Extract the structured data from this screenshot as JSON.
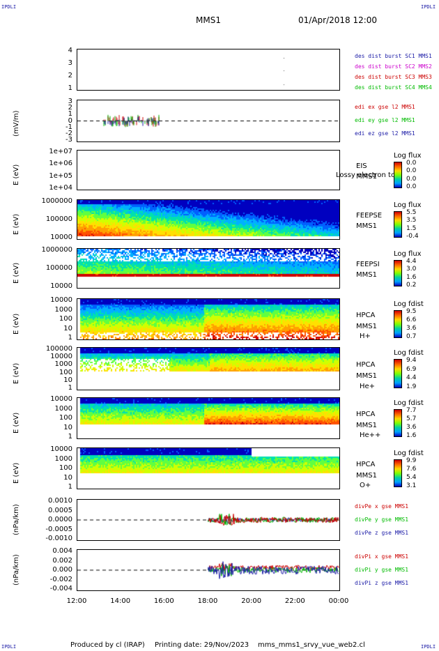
{
  "header": {
    "corner": "IPDLI",
    "spacecraft": "MMS1",
    "datetime": "01/Apr/2018 12:00"
  },
  "footer": {
    "producer": "Produced by cl (IRAP)",
    "print_date": "Printing date: 29/Nov/2023",
    "filename": "mms_mms1_srvy_vue_web2.cl"
  },
  "colors": {
    "blue": "#1a1aa6",
    "magenta": "#cc00cc",
    "red": "#cc0000",
    "green": "#00bb00"
  },
  "chart_data": {
    "type": "heatmap",
    "x_ticks": [
      "12:00",
      "14:00",
      "16:00",
      "18:00",
      "20:00",
      "22:00",
      "00:00"
    ],
    "panels": [
      {
        "kind": "line",
        "y_ticks": [
          "4",
          "3",
          "2",
          "1"
        ],
        "legend": [
          {
            "text": "des dist burst SC1 MMS1",
            "color": "#1a1aa6"
          },
          {
            "text": "des dist burst SC2 MMS2",
            "color": "#cc00cc"
          },
          {
            "text": "des dist burst SC3 MMS3",
            "color": "#cc0000"
          },
          {
            "text": "des dist burst SC4 MMS4",
            "color": "#00bb00"
          }
        ]
      },
      {
        "kind": "line",
        "ylabel": "(mV/m)",
        "y_ticks": [
          "3",
          "2",
          "1",
          "0",
          "-1",
          "-2",
          "-3"
        ],
        "legend": [
          {
            "text": "edi ex gse l2 MMS1",
            "color": "#cc0000"
          },
          {
            "text": "edi ey gse l2 MMS1",
            "color": "#00bb00"
          },
          {
            "text": "edi ez gse l2 MMS1",
            "color": "#1a1aa6"
          }
        ]
      },
      {
        "kind": "spectrogram",
        "ylabel": "E (eV)",
        "y_ticks": [
          "1e+07",
          "1e+06",
          "1e+05",
          "1e+04"
        ],
        "instrument": [
          "EIS",
          "MMS1"
        ],
        "overlay": "Lossy electron tc",
        "colorbar": {
          "title": "Log flux",
          "values": [
            "0.0",
            "0.0",
            "0.0",
            "0.0"
          ]
        }
      },
      {
        "kind": "spectrogram",
        "ylabel": "E (eV)",
        "y_ticks": [
          "1000000",
          "100000",
          "10000"
        ],
        "instrument": [
          "FEEPSE",
          "MMS1"
        ],
        "colorbar": {
          "title": "Log flux",
          "values": [
            "5.5",
            "3.5",
            "1.5",
            "-0.4"
          ]
        }
      },
      {
        "kind": "spectrogram",
        "ylabel": "E (eV)",
        "y_ticks": [
          "1000000",
          "100000",
          "10000"
        ],
        "instrument": [
          "FEEPSI",
          "MMS1"
        ],
        "colorbar": {
          "title": "Log flux",
          "values": [
            "4.4",
            "3.0",
            "1.6",
            "0.2"
          ]
        }
      },
      {
        "kind": "spectrogram",
        "ylabel": "E (eV)",
        "y_ticks": [
          "10000",
          "1000",
          "100",
          "10",
          "1"
        ],
        "instrument": [
          "HPCA",
          "MMS1",
          "H+"
        ],
        "colorbar": {
          "title": "Log fdist",
          "values": [
            "9.5",
            "6.6",
            "3.6",
            "0.7"
          ]
        }
      },
      {
        "kind": "spectrogram",
        "ylabel": "E (eV)",
        "y_ticks": [
          "100000",
          "10000",
          "1000",
          "100",
          "10",
          "1"
        ],
        "instrument": [
          "HPCA",
          "MMS1",
          "He+"
        ],
        "colorbar": {
          "title": "Log fdist",
          "values": [
            "9.4",
            "6.9",
            "4.4",
            "1.9"
          ]
        }
      },
      {
        "kind": "spectrogram",
        "ylabel": "E (eV)",
        "y_ticks": [
          "10000",
          "1000",
          "100",
          "10",
          "1"
        ],
        "instrument": [
          "HPCA",
          "MMS1",
          "He++"
        ],
        "colorbar": {
          "title": "Log fdist",
          "values": [
            "7.7",
            "5.7",
            "3.6",
            "1.6"
          ]
        }
      },
      {
        "kind": "spectrogram",
        "ylabel": "E (eV)",
        "y_ticks": [
          "10000",
          "1000",
          "100",
          "10",
          "1"
        ],
        "instrument": [
          "HPCA",
          "MMS1",
          "O+"
        ],
        "colorbar": {
          "title": "Log fdist",
          "values": [
            "9.9",
            "7.6",
            "5.4",
            "3.1"
          ]
        }
      },
      {
        "kind": "line",
        "ylabel": "(nPa/km)",
        "y_ticks": [
          "0.0010",
          "0.0005",
          "0.0000",
          "-0.0005",
          "-0.0010"
        ],
        "legend": [
          {
            "text": "divPe x gse MMS1",
            "color": "#cc0000"
          },
          {
            "text": "divPe y gse MMS1",
            "color": "#00bb00"
          },
          {
            "text": "divPe z gse MMS1",
            "color": "#1a1aa6"
          }
        ]
      },
      {
        "kind": "line",
        "ylabel": "(nPa/km)",
        "y_ticks": [
          "0.004",
          "0.002",
          "0.000",
          "-0.002",
          "-0.004"
        ],
        "legend": [
          {
            "text": "divPi x gse MMS1",
            "color": "#cc0000"
          },
          {
            "text": "divPi y gse MMS1",
            "color": "#00bb00"
          },
          {
            "text": "divPi z gse MMS1",
            "color": "#1a1aa6"
          }
        ]
      }
    ]
  }
}
